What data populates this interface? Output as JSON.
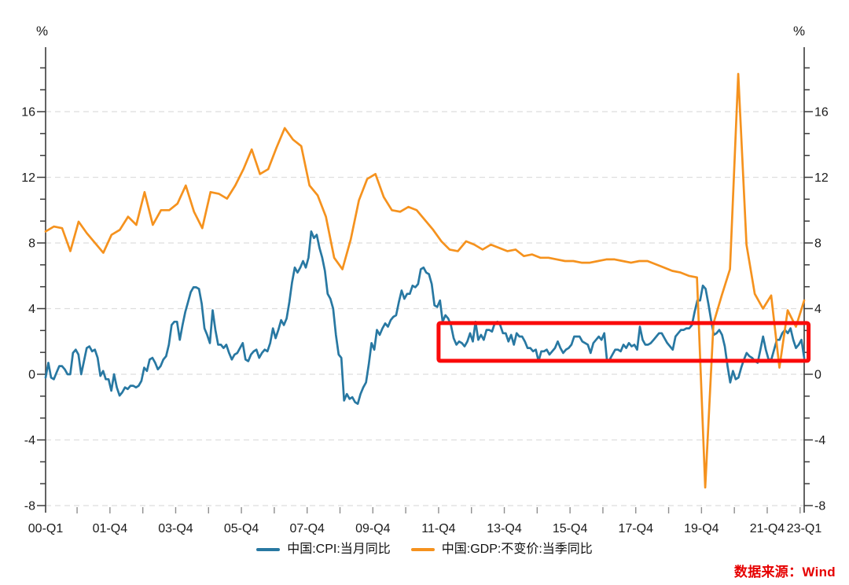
{
  "chart": {
    "left_unit": "%",
    "right_unit": "%"
  },
  "chart_data": {
    "type": "line",
    "title": "",
    "y_unit": "%",
    "y_tick_labels": [
      16,
      12,
      8,
      4,
      0,
      -4,
      -8
    ],
    "x_tick_labels": [
      "00-Q1",
      "01-Q4",
      "03-Q4",
      "05-Q4",
      "07-Q4",
      "09-Q4",
      "11-Q4",
      "13-Q4",
      "15-Q4",
      "17-Q4",
      "19-Q4",
      "21-Q4",
      "23-Q1"
    ],
    "ylim": [
      -8.6,
      19.9
    ],
    "grid": "horizontal-dashed",
    "grid_color": "#dedede",
    "legend_position": "bottom-center",
    "series": [
      {
        "name": "中国:CPI:当月同比",
        "color": "#2878A2",
        "frequency": "monthly",
        "period": "2000-01 to 2023-02",
        "values_by_year": [
          [
            -0.2,
            0.7,
            -0.2,
            -0.3,
            0.1,
            0.5,
            0.5,
            0.3,
            0.0,
            0.0,
            1.3,
            1.5
          ],
          [
            1.2,
            0.0,
            0.8,
            1.6,
            1.7,
            1.4,
            1.5,
            1.0,
            -0.1,
            0.2,
            -0.3,
            -0.3
          ],
          [
            -1.0,
            0.0,
            -0.8,
            -1.3,
            -1.1,
            -0.8,
            -0.9,
            -0.7,
            -0.7,
            -0.8,
            -0.7,
            -0.4
          ],
          [
            0.4,
            0.2,
            0.9,
            1.0,
            0.7,
            0.3,
            0.5,
            0.9,
            1.1,
            1.8,
            3.0,
            3.2
          ],
          [
            3.2,
            2.1,
            3.0,
            3.8,
            4.4,
            5.0,
            5.3,
            5.3,
            5.2,
            4.3,
            2.8,
            2.4
          ],
          [
            1.9,
            3.9,
            2.7,
            1.8,
            1.8,
            1.6,
            1.8,
            1.3,
            0.9,
            1.2,
            1.3,
            1.6
          ],
          [
            1.9,
            0.9,
            0.8,
            1.2,
            1.4,
            1.5,
            1.0,
            1.3,
            1.5,
            1.4,
            1.9,
            2.8
          ],
          [
            2.2,
            2.7,
            3.3,
            3.0,
            3.4,
            4.4,
            5.6,
            6.5,
            6.2,
            6.5,
            6.9,
            6.5
          ],
          [
            7.1,
            8.7,
            8.3,
            8.5,
            7.7,
            7.1,
            6.3,
            4.9,
            4.6,
            4.0,
            2.4,
            1.2
          ],
          [
            1.0,
            -1.6,
            -1.2,
            -1.5,
            -1.4,
            -1.7,
            -1.8,
            -1.2,
            -0.8,
            -0.5,
            0.6,
            1.9
          ],
          [
            1.5,
            2.7,
            2.4,
            2.8,
            3.1,
            2.9,
            3.3,
            3.5,
            3.6,
            4.4,
            5.1,
            4.6
          ],
          [
            4.9,
            4.9,
            5.4,
            5.3,
            5.5,
            6.4,
            6.5,
            6.2,
            6.1,
            5.5,
            4.2,
            4.1
          ],
          [
            4.5,
            3.2,
            3.6,
            3.4,
            3.0,
            2.2,
            1.8,
            2.0,
            1.9,
            1.7,
            2.0,
            2.5
          ],
          [
            2.0,
            3.2,
            2.1,
            2.4,
            2.1,
            2.7,
            2.7,
            2.6,
            3.1,
            3.2,
            3.0,
            2.5
          ],
          [
            2.5,
            2.0,
            2.4,
            1.8,
            2.5,
            2.3,
            2.3,
            2.0,
            1.6,
            1.6,
            1.4,
            1.5
          ],
          [
            0.8,
            1.4,
            1.4,
            1.5,
            1.2,
            1.4,
            1.6,
            2.0,
            1.6,
            1.3,
            1.5,
            1.6
          ],
          [
            1.8,
            2.3,
            2.3,
            2.3,
            2.0,
            1.9,
            1.8,
            1.3,
            1.9,
            2.1,
            2.3,
            2.1
          ],
          [
            2.5,
            0.8,
            0.9,
            1.2,
            1.5,
            1.5,
            1.4,
            1.8,
            1.6,
            1.9,
            1.7,
            1.8
          ],
          [
            1.5,
            2.9,
            2.1,
            1.8,
            1.8,
            1.9,
            2.1,
            2.3,
            2.5,
            2.5,
            2.2,
            1.9
          ],
          [
            1.7,
            1.5,
            2.3,
            2.5,
            2.7,
            2.7,
            2.8,
            2.8,
            3.0,
            3.8,
            4.5,
            4.5
          ],
          [
            5.4,
            5.2,
            4.3,
            3.3,
            2.4,
            2.5,
            2.7,
            2.4,
            1.7,
            0.5,
            -0.5,
            0.2
          ],
          [
            -0.3,
            -0.2,
            0.4,
            0.9,
            1.3,
            1.1,
            1.0,
            0.8,
            0.7,
            1.5,
            2.3,
            1.5
          ],
          [
            0.9,
            0.9,
            1.5,
            2.1,
            2.1,
            2.5,
            2.7,
            2.5,
            2.8,
            2.1,
            1.6,
            1.8
          ],
          [
            2.1,
            1.0
          ]
        ]
      },
      {
        "name": "中国:GDP:不变价:当季同比",
        "color": "#F5921E",
        "frequency": "quarterly",
        "period": "2000-Q1 to 2023-Q1",
        "values_by_year": [
          [
            8.7,
            9.0,
            8.9,
            7.5
          ],
          [
            9.3,
            8.6,
            8.0,
            7.4
          ],
          [
            8.5,
            8.8,
            9.6,
            9.1
          ],
          [
            11.1,
            9.1,
            10.0,
            10.0
          ],
          [
            10.4,
            11.5,
            9.9,
            8.9
          ],
          [
            11.1,
            11.0,
            10.7,
            11.5
          ],
          [
            12.5,
            13.7,
            12.2,
            12.5
          ],
          [
            13.8,
            15.0,
            14.3,
            13.9
          ],
          [
            11.5,
            10.9,
            9.6,
            7.1
          ],
          [
            6.4,
            8.2,
            10.6,
            11.9
          ],
          [
            12.2,
            10.8,
            10.0,
            9.9
          ],
          [
            10.2,
            10.0,
            9.4,
            8.8
          ],
          [
            8.1,
            7.6,
            7.5,
            8.1
          ],
          [
            7.9,
            7.6,
            7.9,
            7.7
          ],
          [
            7.5,
            7.6,
            7.2,
            7.3
          ],
          [
            7.1,
            7.1,
            7.0,
            6.9
          ],
          [
            6.9,
            6.8,
            6.8,
            6.9
          ],
          [
            7.0,
            7.0,
            6.9,
            6.8
          ],
          [
            6.9,
            6.9,
            6.7,
            6.5
          ],
          [
            6.3,
            6.2,
            6.0,
            5.9
          ],
          [
            -6.9,
            3.1,
            4.8,
            6.4
          ],
          [
            18.3,
            7.9,
            4.9,
            4.0
          ],
          [
            4.8,
            0.4,
            3.9,
            2.9
          ],
          [
            4.5
          ]
        ]
      }
    ],
    "annotation_box": {
      "color": "#FA0A0A",
      "month_start": 143.5,
      "month_end": 278.6,
      "value_top": 3.12,
      "value_bottom": 0.82
    }
  },
  "source_note": {
    "text": "数据来源：Wind",
    "color": "#E60000"
  }
}
